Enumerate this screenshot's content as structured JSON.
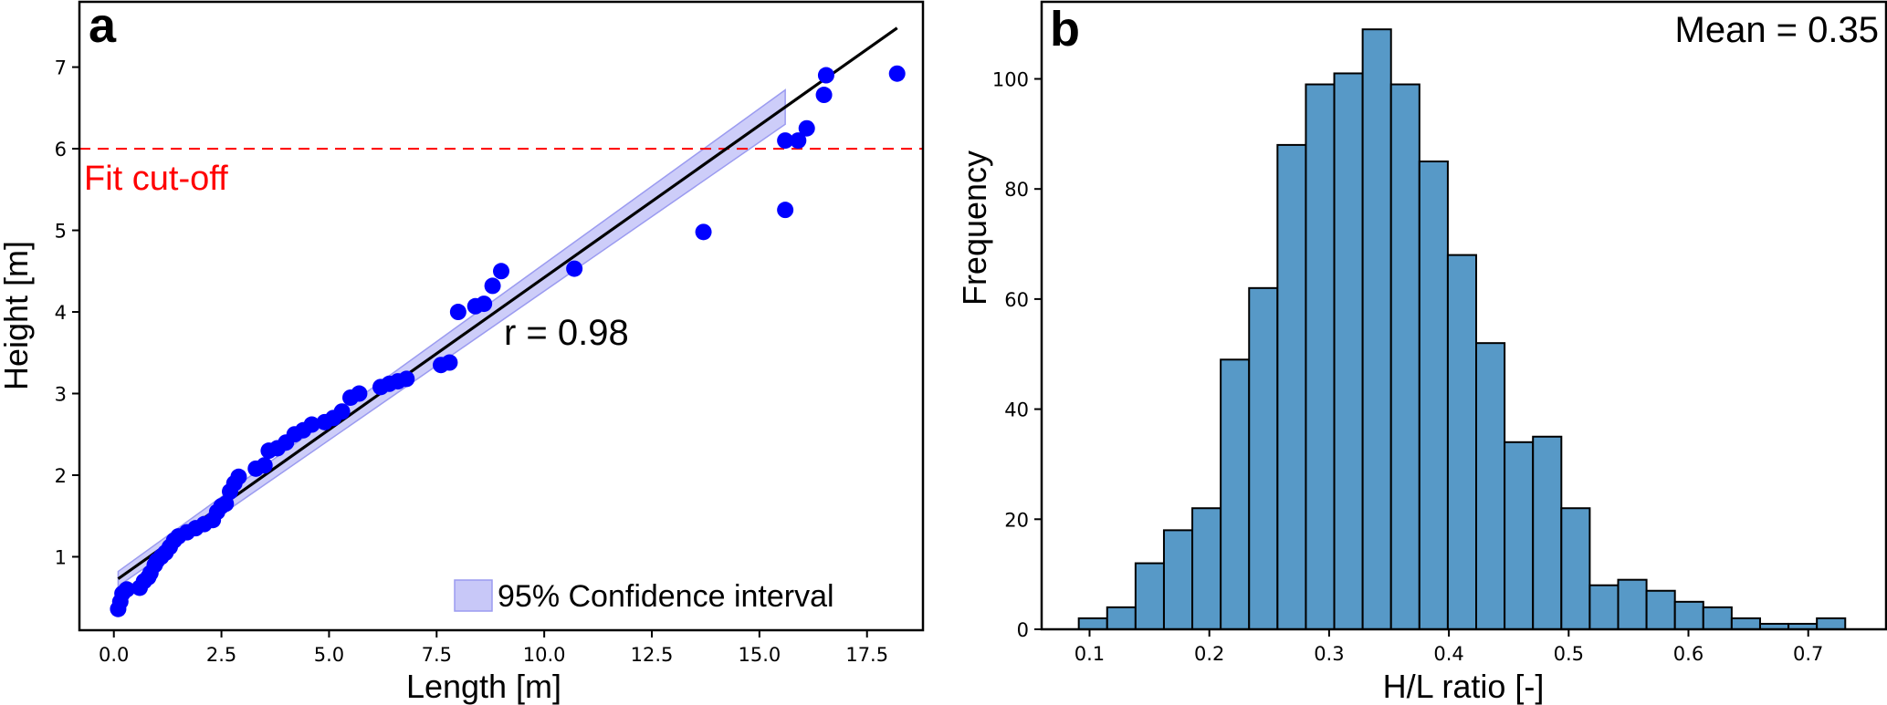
{
  "chart_data": [
    {
      "panel": "a",
      "type": "scatter",
      "xlabel": "Length [m]",
      "ylabel": "Height [m]",
      "xlim": [
        -0.8,
        18.8
      ],
      "ylim": [
        0.1,
        7.8
      ],
      "xticks": [
        0.0,
        2.5,
        5.0,
        7.5,
        10.0,
        12.5,
        15.0,
        17.5
      ],
      "xtick_labels": [
        "0.0",
        "2.5",
        "5.0",
        "7.5",
        "10.0",
        "12.5",
        "15.0",
        "17.5"
      ],
      "yticks": [
        1,
        2,
        3,
        4,
        5,
        6,
        7
      ],
      "ytick_labels": [
        "1",
        "2",
        "3",
        "4",
        "5",
        "6",
        "7"
      ],
      "grid": false,
      "points_color": "#0000ff",
      "points": [
        [
          0.1,
          0.36
        ],
        [
          0.15,
          0.45
        ],
        [
          0.2,
          0.55
        ],
        [
          0.3,
          0.6
        ],
        [
          0.6,
          0.62
        ],
        [
          0.7,
          0.7
        ],
        [
          0.8,
          0.75
        ],
        [
          0.85,
          0.8
        ],
        [
          0.95,
          0.9
        ],
        [
          1.0,
          0.95
        ],
        [
          1.1,
          1.0
        ],
        [
          1.2,
          1.05
        ],
        [
          1.3,
          1.12
        ],
        [
          1.4,
          1.2
        ],
        [
          1.5,
          1.25
        ],
        [
          1.7,
          1.3
        ],
        [
          1.9,
          1.35
        ],
        [
          2.1,
          1.4
        ],
        [
          2.3,
          1.45
        ],
        [
          2.4,
          1.55
        ],
        [
          2.5,
          1.62
        ],
        [
          2.6,
          1.65
        ],
        [
          2.7,
          1.8
        ],
        [
          2.8,
          1.9
        ],
        [
          2.9,
          1.98
        ],
        [
          3.3,
          2.08
        ],
        [
          3.5,
          2.12
        ],
        [
          3.6,
          2.3
        ],
        [
          3.8,
          2.33
        ],
        [
          4.0,
          2.4
        ],
        [
          4.2,
          2.5
        ],
        [
          4.4,
          2.55
        ],
        [
          4.6,
          2.62
        ],
        [
          4.9,
          2.65
        ],
        [
          5.1,
          2.7
        ],
        [
          5.3,
          2.78
        ],
        [
          5.5,
          2.95
        ],
        [
          5.7,
          3.0
        ],
        [
          6.2,
          3.08
        ],
        [
          6.4,
          3.12
        ],
        [
          6.6,
          3.15
        ],
        [
          6.8,
          3.18
        ],
        [
          7.6,
          3.35
        ],
        [
          7.8,
          3.38
        ],
        [
          8.0,
          4.0
        ],
        [
          8.4,
          4.07
        ],
        [
          8.6,
          4.1
        ],
        [
          8.8,
          4.32
        ],
        [
          9.0,
          4.5
        ],
        [
          10.7,
          4.53
        ],
        [
          13.7,
          4.98
        ],
        [
          15.6,
          5.25
        ],
        [
          15.6,
          6.1
        ],
        [
          15.9,
          6.1
        ],
        [
          16.1,
          6.25
        ],
        [
          16.5,
          6.66
        ],
        [
          16.55,
          6.9
        ],
        [
          18.2,
          6.92
        ]
      ],
      "fit_line": {
        "x": [
          0.1,
          18.2
        ],
        "y": [
          0.73,
          7.48
        ],
        "color": "#000000"
      },
      "confidence_band": {
        "x": [
          0.1,
          15.6
        ],
        "upper": [
          0.82,
          6.72
        ],
        "lower": [
          0.64,
          6.3
        ],
        "color": "#c8c8f8",
        "edge_color": "#9b9bf0"
      },
      "cutoff": {
        "y": 6,
        "label": "Fit cut-off",
        "color": "#ff0000"
      },
      "annotation": "r = 0.98",
      "legend": {
        "label": "95% Confidence interval",
        "placement": "bottom-right"
      },
      "panel_label": "a"
    },
    {
      "panel": "b",
      "type": "bar",
      "subtype": "histogram",
      "xlabel": "H/L ratio [-]",
      "ylabel": "Frequency",
      "xlim": [
        0.06,
        0.765
      ],
      "ylim": [
        0,
        114
      ],
      "xticks": [
        0.1,
        0.2,
        0.3,
        0.4,
        0.5,
        0.6,
        0.7
      ],
      "xtick_labels": [
        "0.1",
        "0.2",
        "0.3",
        "0.4",
        "0.5",
        "0.6",
        "0.7"
      ],
      "yticks": [
        0,
        20,
        40,
        60,
        80,
        100
      ],
      "ytick_labels": [
        "0",
        "20",
        "40",
        "60",
        "80",
        "100"
      ],
      "grid": false,
      "bin_start": 0.091,
      "bin_width": 0.0237,
      "values": [
        2,
        4,
        12,
        18,
        22,
        49,
        62,
        88,
        99,
        101,
        109,
        99,
        85,
        68,
        52,
        34,
        35,
        22,
        8,
        9,
        7,
        5,
        4,
        2,
        1,
        1,
        2
      ],
      "bar_color": "#5799c7",
      "edge_color": "#000000",
      "annotation": "Mean = 0.35",
      "panel_label": "b"
    }
  ]
}
